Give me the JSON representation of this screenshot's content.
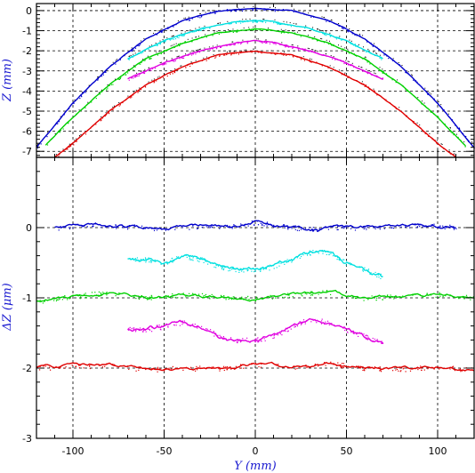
{
  "chart_data": [
    {
      "type": "line",
      "panel": "top",
      "ylabel": "Z (mm)",
      "xlim": [
        -120,
        120
      ],
      "ylim": [
        -7.3,
        0.35
      ],
      "x_ticks": [
        -100,
        -50,
        0,
        50,
        100
      ],
      "y_ticks": [
        0,
        -1,
        -2,
        -3,
        -4,
        -5,
        -6,
        -7
      ],
      "grid": true,
      "series": [
        {
          "color": "#0000cc",
          "x": [
            -120,
            -100,
            -80,
            -60,
            -40,
            -20,
            0,
            20,
            40,
            60,
            80,
            100,
            120
          ],
          "y": [
            -6.8,
            -4.6,
            -2.8,
            -1.4,
            -0.5,
            0.0,
            0.1,
            0.0,
            -0.5,
            -1.4,
            -2.8,
            -4.6,
            -6.8
          ]
        },
        {
          "color": "#00e0e0",
          "x": [
            -70,
            -50,
            -30,
            -10,
            0,
            10,
            30,
            50,
            70
          ],
          "y": [
            -2.4,
            -1.5,
            -0.9,
            -0.55,
            -0.5,
            -0.55,
            -0.9,
            -1.5,
            -2.4
          ]
        },
        {
          "color": "#00d000",
          "x": [
            -115,
            -100,
            -80,
            -60,
            -40,
            -20,
            0,
            20,
            40,
            60,
            80,
            100,
            115
          ],
          "y": [
            -6.7,
            -5.3,
            -3.7,
            -2.4,
            -1.6,
            -1.1,
            -0.9,
            -1.1,
            -1.6,
            -2.4,
            -3.7,
            -5.3,
            -6.7
          ]
        },
        {
          "color": "#e000e0",
          "x": [
            -70,
            -50,
            -30,
            -10,
            0,
            10,
            30,
            50,
            70
          ],
          "y": [
            -3.4,
            -2.6,
            -2.0,
            -1.6,
            -1.5,
            -1.6,
            -2.0,
            -2.6,
            -3.4
          ]
        },
        {
          "color": "#e00000",
          "x": [
            -110,
            -100,
            -80,
            -60,
            -40,
            -20,
            0,
            20,
            40,
            60,
            80,
            100,
            110
          ],
          "y": [
            -7.3,
            -6.6,
            -5.0,
            -3.7,
            -2.8,
            -2.2,
            -2.0,
            -2.2,
            -2.8,
            -3.7,
            -5.0,
            -6.6,
            -7.3
          ]
        }
      ]
    },
    {
      "type": "scatter",
      "panel": "bottom",
      "xlabel": "Y (mm)",
      "ylabel": "ΔZ (μm)",
      "xlim": [
        -120,
        120
      ],
      "ylim": [
        -3,
        1
      ],
      "x_ticks": [
        -100,
        -50,
        0,
        50,
        100
      ],
      "y_ticks": [
        0,
        -1,
        -2,
        -3
      ],
      "grid": true,
      "series": [
        {
          "color": "#0000cc",
          "x": [
            -110,
            -90,
            -70,
            -50,
            -30,
            -10,
            0,
            10,
            30,
            50,
            70,
            90,
            110
          ],
          "y": [
            0.0,
            0.05,
            0.02,
            -0.03,
            0.03,
            0.02,
            0.08,
            0.03,
            -0.02,
            0.0,
            0.02,
            0.04,
            0.0
          ]
        },
        {
          "color": "#00e0e0",
          "x": [
            -70,
            -60,
            -50,
            -40,
            -30,
            -20,
            -10,
            0,
            10,
            20,
            30,
            40,
            50,
            60,
            70
          ],
          "y": [
            -0.45,
            -0.45,
            -0.5,
            -0.4,
            -0.45,
            -0.55,
            -0.6,
            -0.6,
            -0.55,
            -0.45,
            -0.35,
            -0.35,
            -0.5,
            -0.6,
            -0.7
          ]
        },
        {
          "color": "#00d000",
          "x": [
            -120,
            -100,
            -80,
            -60,
            -40,
            -20,
            0,
            20,
            40,
            60,
            80,
            100,
            120
          ],
          "y": [
            -1.05,
            -0.98,
            -0.92,
            -1.0,
            -0.95,
            -0.98,
            -1.0,
            -0.95,
            -0.92,
            -1.0,
            -0.98,
            -0.95,
            -1.0
          ]
        },
        {
          "color": "#e000e0",
          "x": [
            -70,
            -60,
            -50,
            -40,
            -30,
            -20,
            -10,
            0,
            10,
            20,
            30,
            40,
            50,
            60,
            70
          ],
          "y": [
            -1.45,
            -1.45,
            -1.4,
            -1.35,
            -1.4,
            -1.55,
            -1.6,
            -1.6,
            -1.55,
            -1.4,
            -1.3,
            -1.35,
            -1.45,
            -1.55,
            -1.65
          ]
        },
        {
          "color": "#e00000",
          "x": [
            -120,
            -100,
            -80,
            -60,
            -40,
            -20,
            0,
            20,
            40,
            60,
            80,
            100,
            120
          ],
          "y": [
            -2.0,
            -1.98,
            -1.95,
            -2.02,
            -2.0,
            -2.0,
            -1.95,
            -1.98,
            -1.93,
            -2.0,
            -2.02,
            -1.98,
            -2.02
          ]
        }
      ]
    }
  ]
}
